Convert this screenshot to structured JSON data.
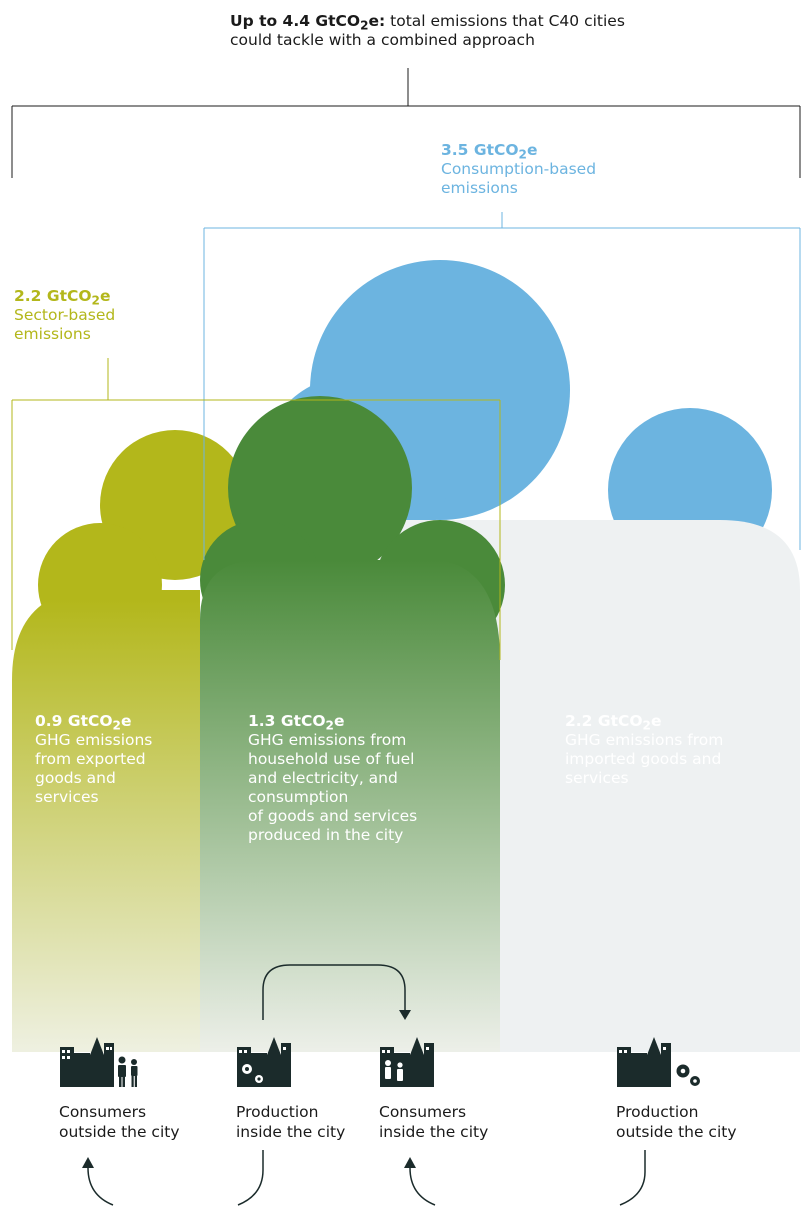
{
  "colors": {
    "olive": "#b3b71b",
    "green": "#4a8a3a",
    "blue": "#6cb4e0",
    "dark": "#1b2b2b"
  },
  "header": {
    "bold": "Up to 4.4 GtCO",
    "sub": "2",
    "bold_suffix": "e:",
    "line1_rest": " total emissions that C40 cities",
    "line2": "could tackle with a combined approach"
  },
  "consumption": {
    "value": "3.5 GtCO",
    "sub": "2",
    "suffix": "e",
    "label": "Consumption-based\nemissions"
  },
  "sector": {
    "value": "2.2 GtCO",
    "sub": "2",
    "suffix": "e",
    "label": "Sector-based\nemissions"
  },
  "clouds": {
    "exported": {
      "value": "0.9 GtCO",
      "sub": "2",
      "suffix": "e",
      "label": "GHG emissions\nfrom exported\ngoods and\nservices"
    },
    "household": {
      "value": "1.3 GtCO",
      "sub": "2",
      "suffix": "e",
      "label": "GHG emissions from\nhousehold use of fuel\nand electricity, and\nconsumption\nof goods and services\nproduced in the city"
    },
    "imported": {
      "value": "2.2 GtCO",
      "sub": "2",
      "suffix": "e",
      "label": "GHG emissions from\nimported goods and\nservices"
    }
  },
  "captions": {
    "consumers_outside": "Consumers\noutside the city",
    "production_inside": "Production\ninside the city",
    "consumers_inside": "Consumers\ninside the city",
    "production_outside": "Production\noutside the city"
  },
  "icons": {
    "consumers_outside": "city-with-people-icon",
    "production_inside": "city-with-gears-icon",
    "consumers_inside": "city-with-people-icon",
    "production_outside": "city-with-gears-icon"
  }
}
